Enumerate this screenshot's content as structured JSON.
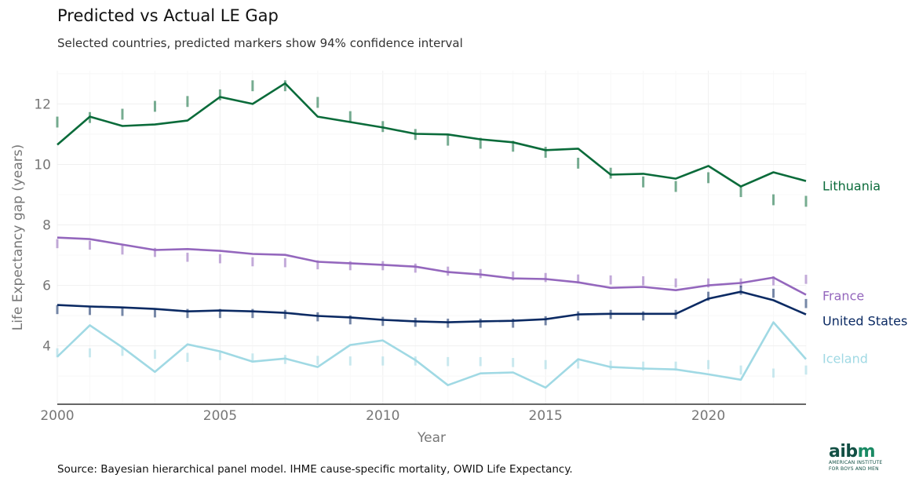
{
  "chart_data": {
    "type": "line",
    "title": "Predicted vs Actual LE Gap",
    "subtitle": "Selected countries, predicted markers show 94% confidence interval",
    "xlabel": "Year",
    "ylabel": "Life Expectancy gap (years)",
    "xlim": [
      2000,
      2023
    ],
    "ylim": [
      2.07,
      13.1
    ],
    "xticks": [
      2000,
      2005,
      2010,
      2015,
      2020
    ],
    "yticks": [
      4,
      6,
      8,
      10,
      12
    ],
    "grid": true,
    "legend": "direct labels at line ends (right)",
    "x": [
      2000,
      2001,
      2002,
      2003,
      2004,
      2005,
      2006,
      2007,
      2008,
      2009,
      2010,
      2011,
      2012,
      2013,
      2014,
      2015,
      2016,
      2017,
      2018,
      2019,
      2020,
      2021,
      2022,
      2023
    ],
    "series": [
      {
        "name": "Lithuania",
        "color": "#0a6b3a",
        "actual": [
          10.65,
          11.58,
          11.27,
          11.32,
          11.45,
          12.23,
          12.0,
          12.68,
          11.58,
          11.4,
          11.22,
          11.01,
          10.99,
          10.83,
          10.73,
          10.47,
          10.52,
          9.66,
          9.69,
          9.53,
          9.95,
          9.27,
          9.74,
          9.45
        ],
        "predicted": [
          11.4,
          11.55,
          11.66,
          11.92,
          12.08,
          12.3,
          12.6,
          12.6,
          12.05,
          11.58,
          11.25,
          10.99,
          10.8,
          10.7,
          10.6,
          10.4,
          10.04,
          9.71,
          9.42,
          9.27,
          9.56,
          9.1,
          8.83,
          8.78
        ],
        "ci_half": 0.18
      },
      {
        "name": "France",
        "color": "#9467bd",
        "actual": [
          7.58,
          7.53,
          7.35,
          7.17,
          7.2,
          7.14,
          7.04,
          7.01,
          6.78,
          6.73,
          6.68,
          6.62,
          6.44,
          6.36,
          6.23,
          6.21,
          6.1,
          5.92,
          5.95,
          5.84,
          6.0,
          6.08,
          6.26,
          5.69
        ],
        "predicted": [
          7.38,
          7.33,
          7.17,
          7.09,
          6.93,
          6.88,
          6.78,
          6.75,
          6.68,
          6.65,
          6.65,
          6.57,
          6.47,
          6.39,
          6.31,
          6.26,
          6.21,
          6.18,
          6.15,
          6.08,
          6.08,
          6.08,
          6.15,
          6.2
        ],
        "ci_half": 0.15
      },
      {
        "name": "United States",
        "color": "#0b2a63",
        "actual": [
          5.35,
          5.3,
          5.27,
          5.22,
          5.14,
          5.17,
          5.14,
          5.09,
          4.99,
          4.94,
          4.86,
          4.81,
          4.78,
          4.81,
          4.83,
          4.88,
          5.04,
          5.06,
          5.06,
          5.06,
          5.56,
          5.79,
          5.51,
          5.04
        ],
        "predicted": [
          5.2,
          5.17,
          5.14,
          5.09,
          5.07,
          5.07,
          5.07,
          5.04,
          4.96,
          4.86,
          4.81,
          4.78,
          4.75,
          4.75,
          4.75,
          4.83,
          4.99,
          5.04,
          4.99,
          5.04,
          5.64,
          5.84,
          5.74,
          5.4
        ],
        "ci_half": 0.15
      },
      {
        "name": "Iceland",
        "color": "#a0d9e4",
        "actual": [
          3.64,
          4.68,
          3.95,
          3.14,
          4.05,
          3.82,
          3.48,
          3.58,
          3.3,
          4.03,
          4.18,
          3.53,
          2.7,
          3.09,
          3.12,
          2.62,
          3.56,
          3.3,
          3.25,
          3.22,
          3.06,
          2.88,
          4.78,
          3.56
        ],
        "predicted": [
          3.77,
          3.77,
          3.82,
          3.72,
          3.62,
          3.68,
          3.6,
          3.55,
          3.52,
          3.5,
          3.5,
          3.5,
          3.48,
          3.48,
          3.45,
          3.38,
          3.4,
          3.36,
          3.33,
          3.33,
          3.38,
          3.2,
          3.1,
          3.2
        ],
        "ci_half": 0.15
      }
    ]
  },
  "source": "Source: Bayesian hierarchical panel model. IHME cause-specific mortality, OWID Life Expectancy.",
  "logo": {
    "word": "aibm",
    "line1": "AMERICAN INSTITUTE",
    "line2": "FOR BOYS AND MEN"
  }
}
